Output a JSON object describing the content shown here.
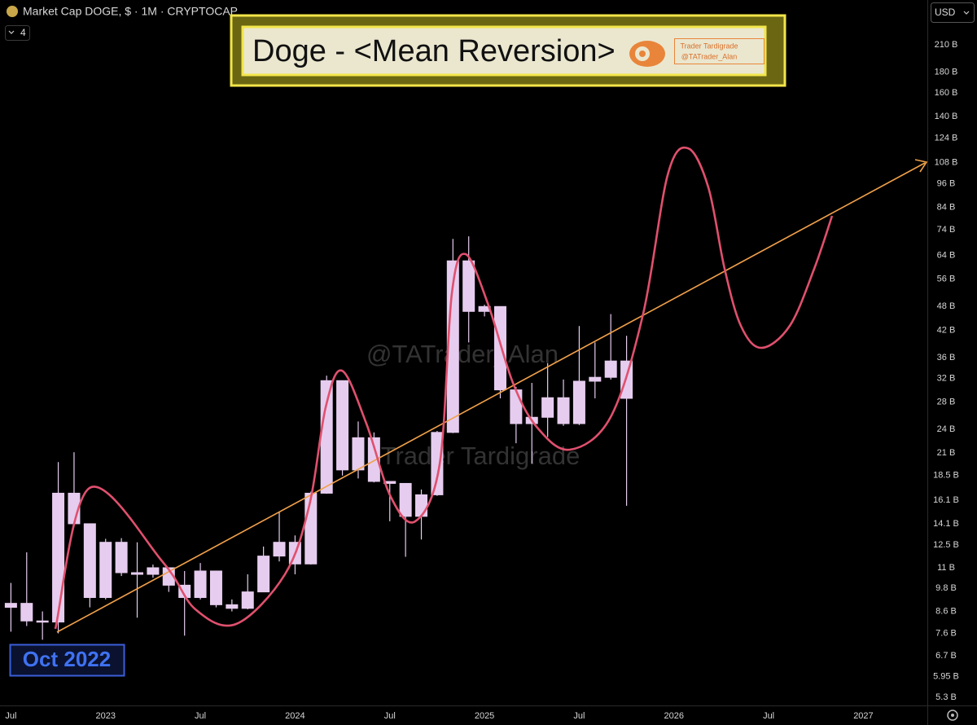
{
  "chart_data": {
    "type": "candlestick",
    "title": "Market Cap DOGE, $ · 1M · CRYPTOCAP",
    "indicator_count": 4,
    "currency": "USD",
    "headline": "Doge - <Mean Reversion>",
    "badge": [
      "Trader Tardigrade",
      "@TATrader_Alan"
    ],
    "watermark": [
      "@TATrader_Alan",
      "Trader Tardigrade"
    ],
    "callout": "Oct 2022",
    "color": "#e6cdef",
    "log_scale": true,
    "grid": false,
    "x": [
      "2022-07",
      "2022-08",
      "2022-09",
      "2022-10",
      "2022-11",
      "2022-12",
      "2023-01",
      "2023-02",
      "2023-03",
      "2023-04",
      "2023-05",
      "2023-06",
      "2023-07",
      "2023-08",
      "2023-09",
      "2023-10",
      "2023-11",
      "2023-12",
      "2024-01",
      "2024-02",
      "2024-03",
      "2024-04",
      "2024-05",
      "2024-06",
      "2024-07",
      "2024-08",
      "2024-09",
      "2024-10",
      "2024-11",
      "2024-12",
      "2025-01",
      "2025-02",
      "2025-03",
      "2025-04",
      "2025-05",
      "2025-06",
      "2025-07",
      "2025-08",
      "2025-09",
      "2025-10"
    ],
    "open": [
      8.8,
      9.0,
      8.15,
      8.1,
      16.75,
      14.1,
      9.3,
      12.7,
      10.7,
      10.6,
      11.0,
      9.97,
      9.3,
      10.8,
      8.93,
      8.75,
      9.6,
      11.75,
      12.7,
      11.24,
      16.75,
      31.6,
      19.1,
      22.9,
      17.9,
      17.7,
      14.7,
      16.6,
      23.6,
      62.1,
      46.7,
      48.0,
      30.0,
      24.8,
      25.7,
      28.7,
      24.8,
      31.5,
      32.2,
      35.3
    ],
    "high": [
      10.1,
      12.0,
      8.6,
      19.96,
      21.1,
      14.1,
      12.95,
      13.0,
      12.7,
      11.2,
      11.0,
      10.8,
      11.3,
      10.8,
      9.2,
      10.6,
      12.4,
      15.1,
      13.2,
      16.9,
      32.5,
      31.6,
      25.1,
      23.6,
      17.9,
      17.7,
      17.1,
      23.8,
      70.3,
      71.3,
      48.5,
      48.0,
      30.5,
      31.2,
      34.9,
      31.8,
      43.0,
      39.2,
      46.0,
      40.7
    ],
    "low": [
      7.67,
      7.92,
      7.33,
      7.6,
      14.1,
      8.8,
      9.2,
      10.5,
      8.3,
      10.4,
      9.6,
      7.5,
      9.2,
      8.8,
      8.6,
      8.7,
      9.6,
      11.4,
      10.6,
      11.2,
      16.7,
      18.5,
      18.2,
      17.8,
      14.3,
      11.7,
      12.9,
      16.5,
      23.5,
      39.2,
      45.4,
      28.6,
      22.2,
      19.8,
      23.0,
      24.5,
      24.6,
      28.6,
      31.8,
      15.6
    ],
    "close": [
      9.0,
      8.15,
      8.1,
      16.75,
      14.1,
      9.3,
      12.7,
      10.7,
      10.6,
      11.0,
      9.97,
      9.3,
      10.8,
      8.93,
      8.75,
      9.6,
      11.75,
      12.7,
      11.24,
      16.75,
      31.6,
      19.1,
      22.9,
      17.9,
      17.7,
      14.7,
      16.6,
      23.6,
      62.1,
      46.7,
      48.0,
      30.0,
      24.8,
      25.7,
      28.7,
      24.8,
      31.5,
      32.2,
      35.3,
      28.6
    ],
    "xlim": [
      "2022-06",
      "2027-05"
    ],
    "xticks": [
      {
        "value": "2022-07",
        "label": "Jul"
      },
      {
        "value": "2023-01",
        "label": "2023"
      },
      {
        "value": "2023-07",
        "label": "Jul"
      },
      {
        "value": "2024-01",
        "label": "2024"
      },
      {
        "value": "2024-07",
        "label": "Jul"
      },
      {
        "value": "2025-01",
        "label": "2025"
      },
      {
        "value": "2025-07",
        "label": "Jul"
      },
      {
        "value": "2026-01",
        "label": "2026"
      },
      {
        "value": "2026-07",
        "label": "Jul"
      },
      {
        "value": "2027-01",
        "label": "2027"
      }
    ],
    "ylim": [
      5.06,
      270.4
    ],
    "yticks": [
      {
        "value": 210,
        "label": "210 B"
      },
      {
        "value": 180,
        "label": "180 B"
      },
      {
        "value": 160,
        "label": "160 B"
      },
      {
        "value": 140,
        "label": "140 B"
      },
      {
        "value": 124,
        "label": "124 B"
      },
      {
        "value": 108,
        "label": "108 B"
      },
      {
        "value": 96,
        "label": "96 B"
      },
      {
        "value": 84,
        "label": "84 B"
      },
      {
        "value": 74,
        "label": "74 B"
      },
      {
        "value": 64,
        "label": "64 B"
      },
      {
        "value": 56,
        "label": "56 B"
      },
      {
        "value": 48,
        "label": "48 B"
      },
      {
        "value": 42,
        "label": "42 B"
      },
      {
        "value": 36,
        "label": "36 B"
      },
      {
        "value": 32,
        "label": "32 B"
      },
      {
        "value": 28,
        "label": "28 B"
      },
      {
        "value": 24,
        "label": "24 B"
      },
      {
        "value": 21,
        "label": "21 B"
      },
      {
        "value": 18.5,
        "label": "18.5 B"
      },
      {
        "value": 16.1,
        "label": "16.1 B"
      },
      {
        "value": 14.1,
        "label": "14.1 B"
      },
      {
        "value": 12.5,
        "label": "12.5 B"
      },
      {
        "value": 11,
        "label": "11 B"
      },
      {
        "value": 9.8,
        "label": "9.8 B"
      },
      {
        "value": 8.6,
        "label": "8.6 B"
      },
      {
        "value": 7.6,
        "label": "7.6 B"
      },
      {
        "value": 6.7,
        "label": "6.7 B"
      },
      {
        "value": 5.95,
        "label": "5.95 B"
      },
      {
        "value": 5.3,
        "label": "5.3 B"
      }
    ]
  }
}
